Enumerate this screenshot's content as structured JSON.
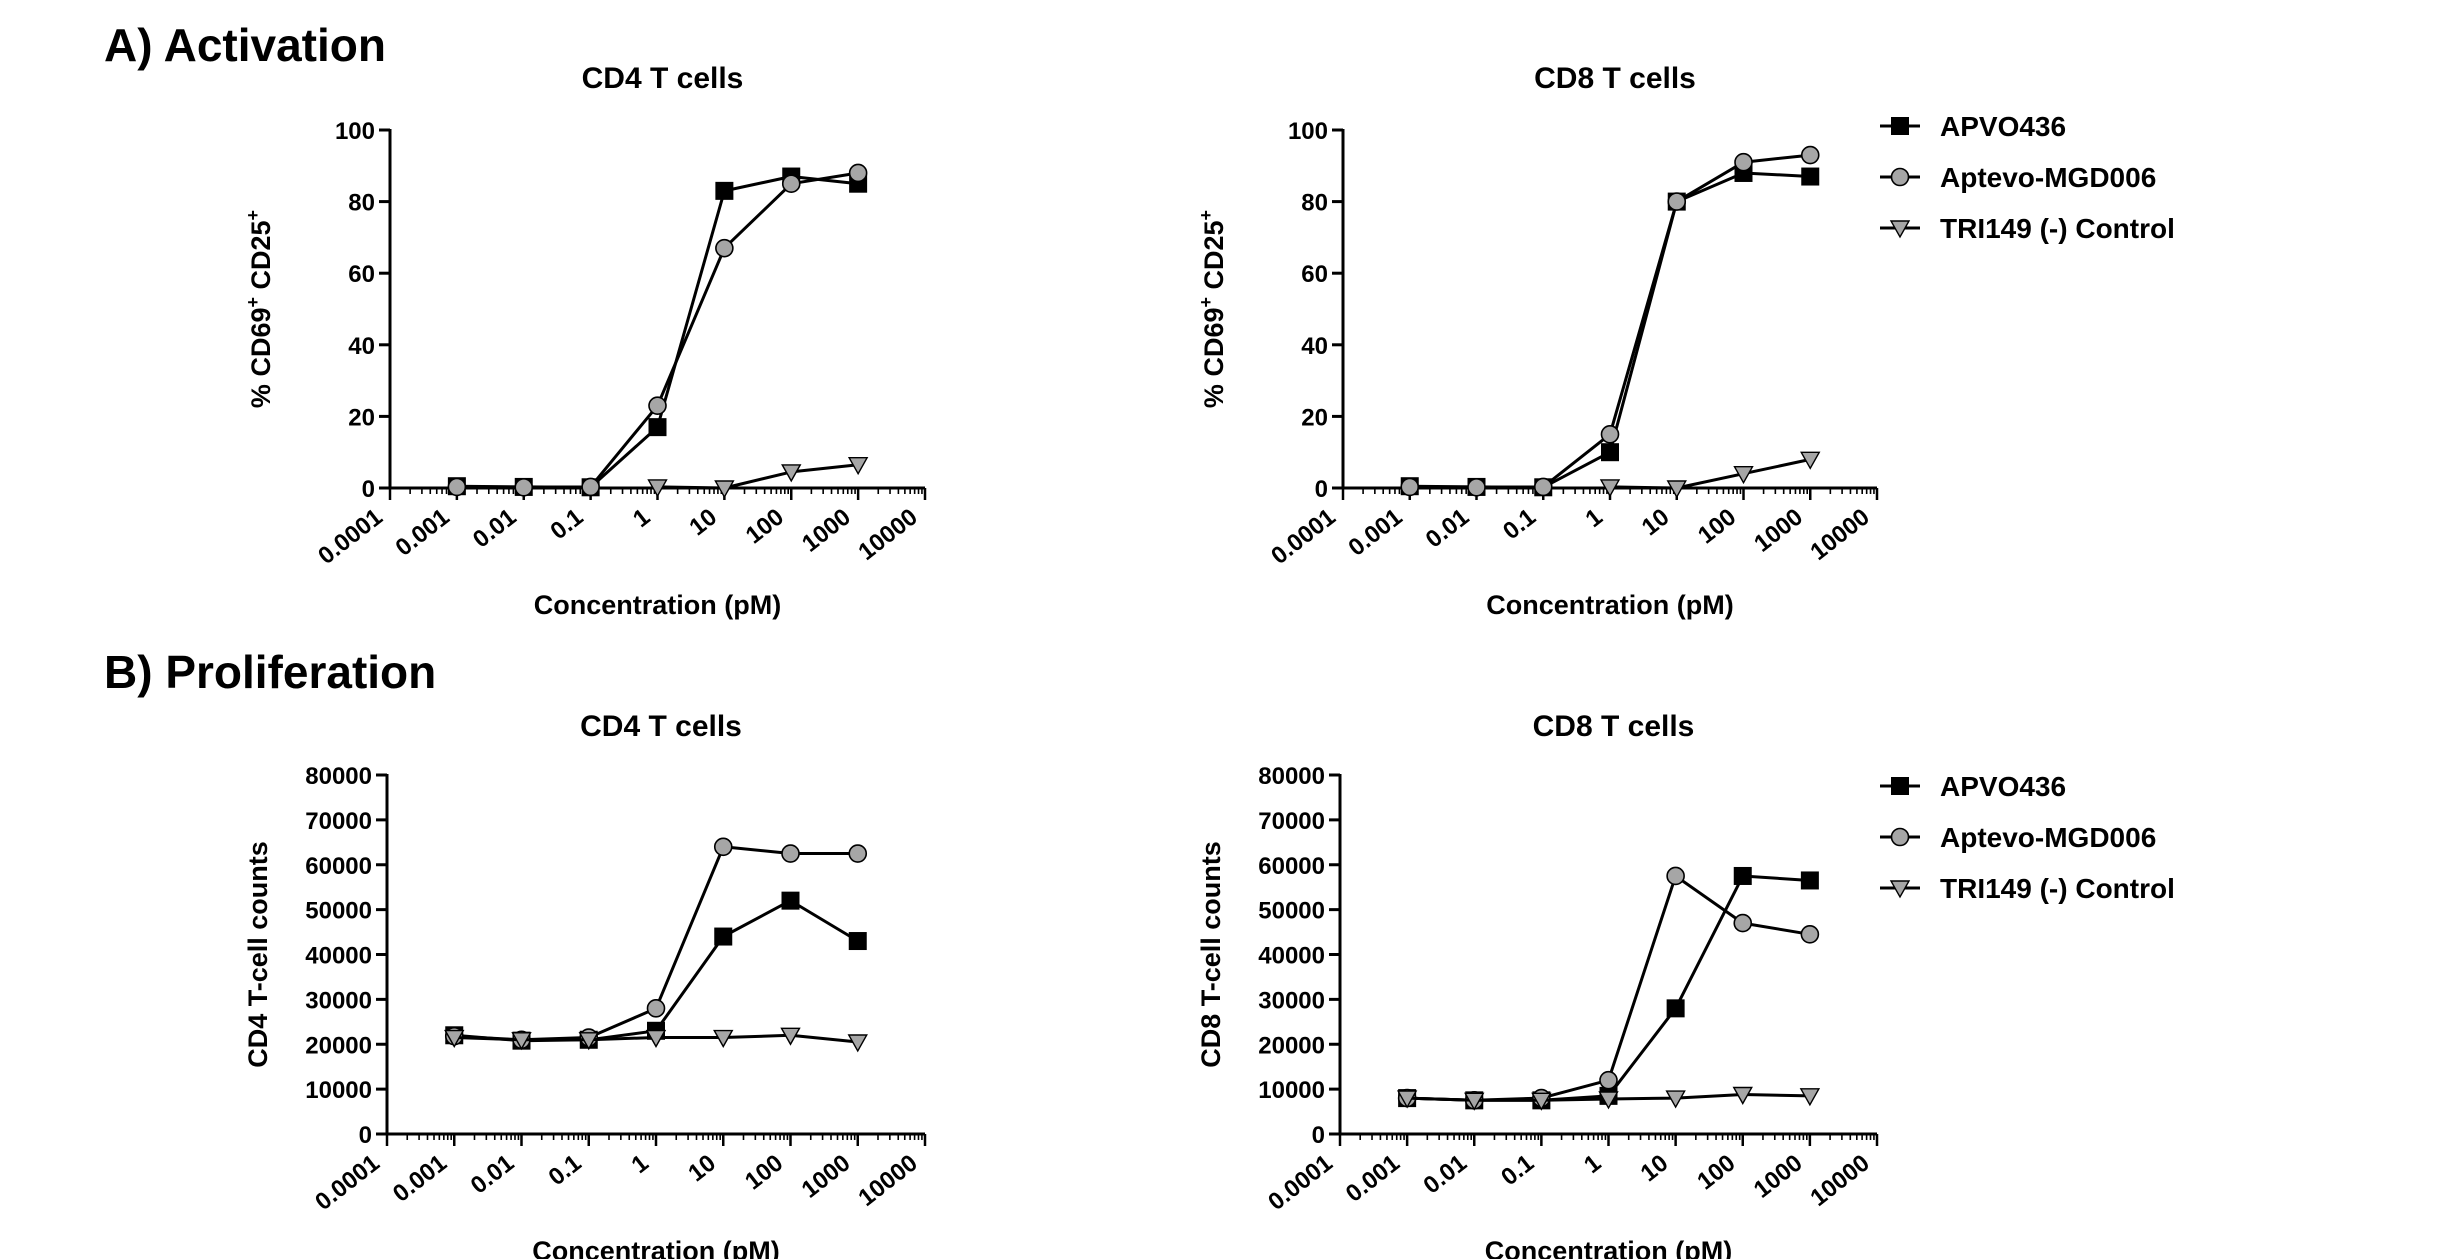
{
  "figure": {
    "section_a": "A) Activation",
    "section_b": "B) Proliferation"
  },
  "legend_series": [
    "APVO436",
    "Aptevo-MGD006",
    "TRI149 (-) Control"
  ],
  "colors": {
    "APVO436": "#000000",
    "Aptevo-MGD006": "#a6a6a6",
    "TRI149 (-) Control": "#a6a6a6"
  },
  "chart_data": [
    {
      "id": "a-cd4",
      "type": "line",
      "title": "CD4 T cells",
      "xlabel": "Concentration (pM)",
      "ylabel": "% CD69+ CD25+",
      "xscale": "log",
      "xlim": [
        0.0001,
        10000
      ],
      "xticks": [
        "0.0001",
        "0.001",
        "0.01",
        "0.1",
        "1",
        "10",
        "100",
        "1000",
        "10000"
      ],
      "ylim": [
        0,
        100
      ],
      "yticks": [
        "0",
        "20",
        "40",
        "60",
        "80",
        "100"
      ],
      "x": [
        0.001,
        0.01,
        0.1,
        1,
        10,
        100,
        1000
      ],
      "series": [
        {
          "name": "APVO436",
          "marker": "square",
          "values": [
            0.5,
            0.3,
            0.2,
            17,
            83,
            87,
            85
          ]
        },
        {
          "name": "Aptevo-MGD006",
          "marker": "circle",
          "values": [
            0.3,
            0.2,
            0.3,
            23,
            67,
            85,
            88
          ]
        },
        {
          "name": "TRI149 (-) Control",
          "marker": "triangle-down",
          "values": [
            null,
            null,
            null,
            0.3,
            0,
            4.5,
            6.5
          ]
        }
      ],
      "legend": false
    },
    {
      "id": "a-cd8",
      "type": "line",
      "title": "CD8 T cells",
      "xlabel": "Concentration (pM)",
      "ylabel": "% CD69+ CD25+",
      "xscale": "log",
      "xlim": [
        0.0001,
        10000
      ],
      "xticks": [
        "0.0001",
        "0.001",
        "0.01",
        "0.1",
        "1",
        "10",
        "100",
        "1000",
        "10000"
      ],
      "ylim": [
        0,
        100
      ],
      "yticks": [
        "0",
        "20",
        "40",
        "60",
        "80",
        "100"
      ],
      "x": [
        0.001,
        0.01,
        0.1,
        1,
        10,
        100,
        1000
      ],
      "series": [
        {
          "name": "APVO436",
          "marker": "square",
          "values": [
            0.5,
            0.3,
            0.2,
            10,
            80,
            88,
            87
          ]
        },
        {
          "name": "Aptevo-MGD006",
          "marker": "circle",
          "values": [
            0.3,
            0.2,
            0.3,
            15,
            80,
            91,
            93
          ]
        },
        {
          "name": "TRI149 (-) Control",
          "marker": "triangle-down",
          "values": [
            null,
            null,
            null,
            0.3,
            0,
            4,
            8
          ]
        }
      ],
      "legend": "right"
    },
    {
      "id": "b-cd4",
      "type": "line",
      "title": "CD4 T cells",
      "xlabel": "Concentration (pM)",
      "ylabel": "CD4 T-cell counts",
      "xscale": "log",
      "xlim": [
        0.0001,
        10000
      ],
      "xticks": [
        "0.0001",
        "0.001",
        "0.01",
        "0.1",
        "1",
        "10",
        "100",
        "1000",
        "10000"
      ],
      "ylim": [
        0,
        80000
      ],
      "yticks": [
        "0",
        "10000",
        "20000",
        "30000",
        "40000",
        "50000",
        "60000",
        "70000",
        "80000"
      ],
      "x": [
        0.001,
        0.01,
        0.1,
        1,
        10,
        100,
        1000
      ],
      "series": [
        {
          "name": "APVO436",
          "marker": "square",
          "values": [
            22000,
            20800,
            21000,
            23000,
            44000,
            52000,
            43000
          ]
        },
        {
          "name": "Aptevo-MGD006",
          "marker": "circle",
          "values": [
            21800,
            21000,
            21500,
            28000,
            64000,
            62500,
            62500
          ]
        },
        {
          "name": "TRI149 (-) Control",
          "marker": "triangle-down",
          "values": [
            21500,
            21000,
            21000,
            21500,
            21500,
            22000,
            20500
          ]
        }
      ],
      "legend": false
    },
    {
      "id": "b-cd8",
      "type": "line",
      "title": "CD8 T cells",
      "xlabel": "Concentration (pM)",
      "ylabel": "CD8 T-cell counts",
      "xscale": "log",
      "xlim": [
        0.0001,
        10000
      ],
      "xticks": [
        "0.0001",
        "0.001",
        "0.01",
        "0.1",
        "1",
        "10",
        "100",
        "1000",
        "10000"
      ],
      "ylim": [
        0,
        80000
      ],
      "yticks": [
        "0",
        "10000",
        "20000",
        "30000",
        "40000",
        "50000",
        "60000",
        "70000",
        "80000"
      ],
      "x": [
        0.001,
        0.01,
        0.1,
        1,
        10,
        100,
        1000
      ],
      "series": [
        {
          "name": "APVO436",
          "marker": "square",
          "values": [
            8000,
            7500,
            7500,
            8500,
            28000,
            57500,
            56500
          ]
        },
        {
          "name": "Aptevo-MGD006",
          "marker": "circle",
          "values": [
            8000,
            7500,
            8000,
            12000,
            57500,
            47000,
            44500
          ]
        },
        {
          "name": "TRI149 (-) Control",
          "marker": "triangle-down",
          "values": [
            8000,
            7500,
            7500,
            7800,
            8000,
            8800,
            8500
          ]
        }
      ],
      "legend": "right"
    }
  ]
}
